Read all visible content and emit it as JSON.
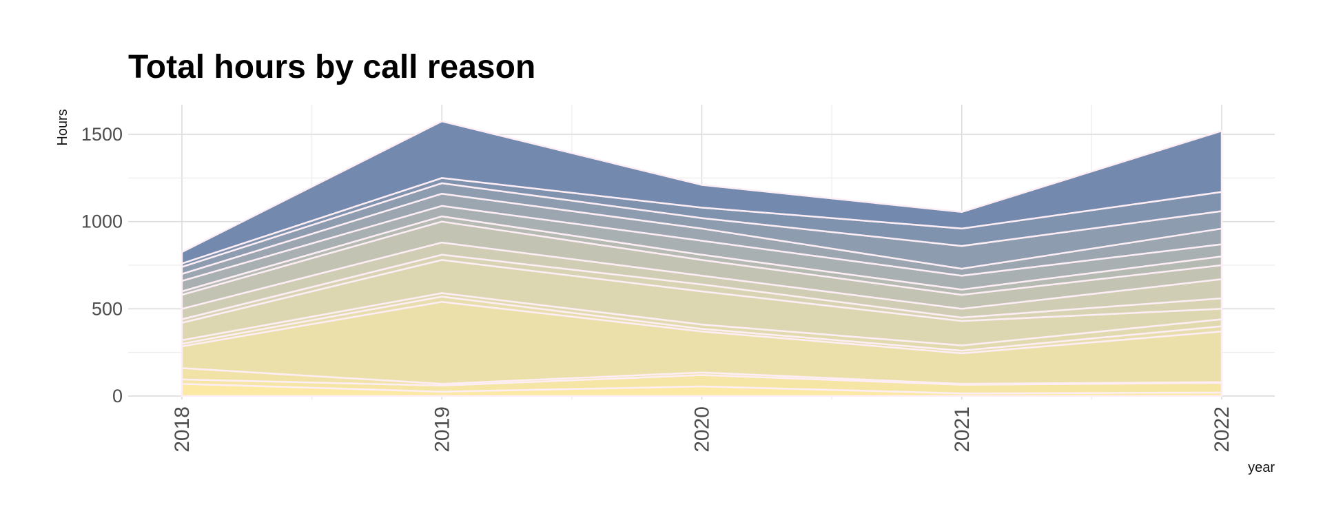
{
  "chart_data": {
    "type": "area",
    "title": "Total hours by call reason",
    "xlabel": "year",
    "ylabel": "Hours",
    "x": [
      "2018",
      "2019",
      "2020",
      "2021",
      "2022"
    ],
    "ylim": [
      -20,
      1670
    ],
    "yticks": [
      0,
      500,
      1000,
      1500
    ],
    "grid": true,
    "legend": "none",
    "colors": {
      "low": "#fbe9a4",
      "mid": "#d6d2b4",
      "high": "#7389ad",
      "separator": "#fdeef5"
    },
    "totals": [
      825,
      1575,
      1210,
      1055,
      1520
    ],
    "layer_boundaries": [
      [
        0,
        0,
        0,
        0,
        0
      ],
      [
        70,
        25,
        55,
        15,
        20
      ],
      [
        95,
        60,
        120,
        65,
        75
      ],
      [
        160,
        70,
        135,
        70,
        80
      ],
      [
        285,
        540,
        370,
        245,
        370
      ],
      [
        300,
        570,
        385,
        260,
        400
      ],
      [
        320,
        590,
        410,
        290,
        440
      ],
      [
        420,
        780,
        600,
        430,
        500
      ],
      [
        440,
        810,
        640,
        450,
        560
      ],
      [
        500,
        880,
        690,
        500,
        670
      ],
      [
        580,
        1000,
        780,
        580,
        750
      ],
      [
        600,
        1030,
        810,
        610,
        800
      ],
      [
        660,
        1090,
        890,
        690,
        870
      ],
      [
        700,
        1160,
        960,
        730,
        960
      ],
      [
        740,
        1220,
        1020,
        860,
        1060
      ],
      [
        760,
        1250,
        1080,
        960,
        1170
      ],
      [
        825,
        1575,
        1210,
        1055,
        1520
      ]
    ]
  }
}
